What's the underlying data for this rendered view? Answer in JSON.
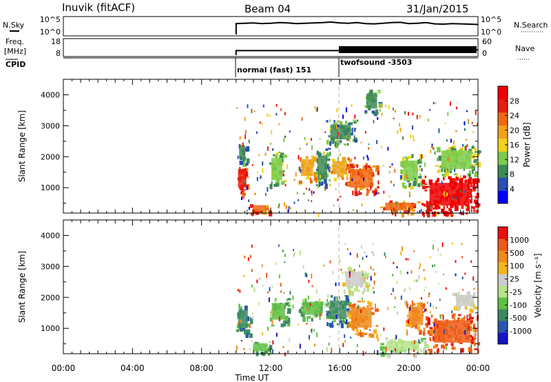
{
  "header": {
    "station": "Inuvik (fitACF)",
    "beam": "Beam 04",
    "date": "31/Jan/2015"
  },
  "chart_data": [
    {
      "type": "line",
      "panel": "noise",
      "left_label": "N.Sky",
      "left_ticks": [
        "10^5",
        "10^0"
      ],
      "right_label": "N.Search",
      "right_ticks": [
        "10^5",
        "10^0"
      ],
      "x": [
        10.0,
        10.5,
        11.0,
        11.5,
        12.0,
        12.5,
        13.0,
        13.5,
        14.0,
        14.5,
        15.0,
        15.5,
        16.0,
        16.5,
        17.0,
        17.5,
        18.0,
        18.5,
        19.0,
        19.5,
        20.0,
        20.5,
        21.0,
        21.5,
        22.0,
        22.5,
        23.0,
        23.5,
        24.0
      ],
      "values": [
        3.6,
        3.7,
        3.8,
        3.6,
        3.7,
        3.9,
        3.8,
        3.6,
        3.7,
        3.8,
        3.9,
        4.1,
        3.8,
        3.7,
        3.9,
        3.6,
        3.5,
        3.7,
        3.9,
        4.0,
        3.6,
        3.7,
        3.9,
        3.5,
        3.4,
        3.6,
        3.5,
        3.4,
        3.3
      ]
    },
    {
      "type": "line",
      "panel": "frequency",
      "left_label_top": "Freq.",
      "left_label_bottom": "[MHz]",
      "left_ticks": [
        "18",
        "8"
      ],
      "right_label": "Nave",
      "right_ticks": [
        "60",
        "0"
      ],
      "x": [
        10.0,
        16.0,
        16.0,
        24.0
      ],
      "values": [
        11.0,
        11.0,
        11.5,
        11.5
      ],
      "ylim": [
        8,
        18
      ]
    },
    {
      "type": "table",
      "panel": "cpid",
      "label": "CPID",
      "segments": [
        {
          "start": 10.0,
          "end": 16.0,
          "label": "normal (fast) 151"
        },
        {
          "start": 16.0,
          "end": 24.0,
          "label": "twofsound -3503"
        }
      ]
    },
    {
      "type": "heatmap",
      "panel": "power",
      "ylabel": "Slant Range [km]",
      "yticks": [
        1000,
        2000,
        3000,
        4000
      ],
      "ylim": [
        180,
        4500
      ],
      "colorbar_label": "Power [dB]",
      "colorbar_ticks": [
        "28",
        "24",
        "20",
        "16",
        "12",
        "8",
        "4"
      ],
      "colors": [
        "#0000ff",
        "#2a4fb4",
        "#3d8a55",
        "#7ccc4a",
        "#f2d21a",
        "#f0a31a",
        "#ee6a12",
        "#e81e10",
        "#ee0000"
      ],
      "regions": [
        {
          "t0": 10.0,
          "t1": 10.7,
          "r0": 800,
          "r1": 1800,
          "level": 7
        },
        {
          "t0": 10.1,
          "t1": 10.6,
          "r0": 1800,
          "r1": 2500,
          "level": 2
        },
        {
          "t0": 10.8,
          "t1": 11.9,
          "r0": 180,
          "r1": 500,
          "level": 6
        },
        {
          "t0": 11.9,
          "t1": 12.8,
          "r0": 1000,
          "r1": 2200,
          "level": 3
        },
        {
          "t0": 13.6,
          "t1": 14.6,
          "r0": 1200,
          "r1": 2100,
          "level": 5
        },
        {
          "t0": 14.6,
          "t1": 15.4,
          "r0": 1000,
          "r1": 2300,
          "level": 2
        },
        {
          "t0": 15.4,
          "t1": 16.6,
          "r0": 1300,
          "r1": 2000,
          "level": 5
        },
        {
          "t0": 16.3,
          "t1": 18.2,
          "r0": 800,
          "r1": 1800,
          "level": 6
        },
        {
          "t0": 15.2,
          "t1": 16.9,
          "r0": 2400,
          "r1": 3200,
          "level": 2
        },
        {
          "t0": 17.4,
          "t1": 18.3,
          "r0": 3400,
          "r1": 4200,
          "level": 2
        },
        {
          "t0": 18.3,
          "t1": 20.5,
          "r0": 180,
          "r1": 600,
          "level": 6
        },
        {
          "t0": 19.5,
          "t1": 20.7,
          "r0": 1000,
          "r1": 2100,
          "level": 3
        },
        {
          "t0": 20.7,
          "t1": 24.0,
          "r0": 180,
          "r1": 1400,
          "level": 8
        },
        {
          "t0": 21.5,
          "t1": 24.0,
          "r0": 1400,
          "r1": 2400,
          "level": 3
        }
      ]
    },
    {
      "type": "heatmap",
      "panel": "velocity",
      "ylabel": "Slant Range [km]",
      "yticks": [
        1000,
        2000,
        3000,
        4000
      ],
      "ylim": [
        180,
        4500
      ],
      "xlabel": "Time UT",
      "xticks": [
        "00:00",
        "04:00",
        "08:00",
        "12:00",
        "16:00",
        "20:00",
        "00:00"
      ],
      "colorbar_label": "Velocity [m s⁻¹]",
      "colorbar_ticks": [
        "1000",
        "500",
        "100",
        "25",
        "-25",
        "-100",
        "-500",
        "-1000"
      ],
      "colors": [
        "#1414c8",
        "#2a56b0",
        "#3c8a60",
        "#5fbf45",
        "#b8e38a",
        "#cccccc",
        "#f5b520",
        "#f08a1e",
        "#ee5a18",
        "#e81010"
      ],
      "regions": [
        {
          "t0": 10.0,
          "t1": 10.8,
          "r0": 800,
          "r1": 1800,
          "level": 2
        },
        {
          "t0": 10.8,
          "t1": 12.0,
          "r0": 180,
          "r1": 600,
          "level": 3
        },
        {
          "t0": 11.9,
          "t1": 13.0,
          "r0": 1100,
          "r1": 2000,
          "level": 3
        },
        {
          "t0": 13.6,
          "t1": 15.2,
          "r0": 1300,
          "r1": 2000,
          "level": 3
        },
        {
          "t0": 15.2,
          "t1": 16.6,
          "r0": 1100,
          "r1": 2100,
          "level": 2
        },
        {
          "t0": 16.4,
          "t1": 18.1,
          "r0": 800,
          "r1": 1900,
          "level": 7
        },
        {
          "t0": 16.1,
          "t1": 17.6,
          "r0": 2200,
          "r1": 3000,
          "level": 5
        },
        {
          "t0": 18.3,
          "t1": 21.0,
          "r0": 180,
          "r1": 700,
          "level": 4
        },
        {
          "t0": 19.8,
          "t1": 21.0,
          "r0": 900,
          "r1": 1900,
          "level": 7
        },
        {
          "t0": 21.0,
          "t1": 24.0,
          "r0": 300,
          "r1": 1500,
          "level": 8
        },
        {
          "t0": 22.5,
          "t1": 24.0,
          "r0": 1600,
          "r1": 2200,
          "level": 5
        }
      ]
    }
  ]
}
